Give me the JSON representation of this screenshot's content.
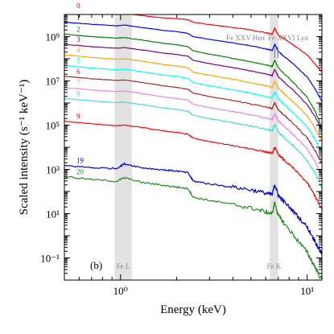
{
  "chart_data": {
    "type": "line",
    "title": "",
    "xlabel": "Energy (keV)",
    "ylabel": "Scaled intensity (s⁻¹ keV⁻¹)",
    "x_scale": "log",
    "y_scale": "log",
    "xlim": [
      0.5,
      12
    ],
    "ylim": [
      0.01,
      10000000000
    ],
    "x_ticks": [
      {
        "value": 1,
        "label": "10⁰"
      },
      {
        "value": 10,
        "label": "10¹"
      }
    ],
    "y_ticks": [
      {
        "value": 0.1,
        "label": "10⁻¹"
      },
      {
        "value": 10,
        "label": "10¹"
      },
      {
        "value": 1000,
        "label": "10³"
      },
      {
        "value": 100000,
        "label": "10⁵"
      },
      {
        "value": 10000000,
        "label": "10⁷"
      },
      {
        "value": 1000000000,
        "label": "10⁹"
      }
    ],
    "panel_label": "(b)",
    "shaded_bands": [
      {
        "label": "Fe L",
        "x_min": 0.93,
        "x_max": 1.15
      },
      {
        "label": "Fe K",
        "x_min": 6.3,
        "x_max": 7.0
      }
    ],
    "line_markers": [
      {
        "label": "Fe XXV Heα",
        "x": 6.7
      },
      {
        "label": "Fe XXVI Lyα",
        "x": 6.97
      }
    ],
    "energy_points": [
      0.5,
      0.7,
      0.95,
      1.05,
      1.3,
      1.7,
      2.0,
      2.3,
      2.45,
      3.0,
      4.0,
      5.0,
      6.0,
      6.5,
      6.7,
      7.0,
      7.5,
      8.5,
      10.0,
      11.0,
      12.0
    ],
    "series": [
      {
        "name": "0",
        "color": "#ff0000",
        "values": [
          15000000000.0,
          12000000000.0,
          10500000000.0,
          11000000000.0,
          9000000000.0,
          7000000000.0,
          6500000000.0,
          5800000000.0,
          4500000000.0,
          3500000000.0,
          2600000000.0,
          2000000000.0,
          1500000000.0,
          1300000000.0,
          2400000000.0,
          1200000000.0,
          800000000.0,
          400000000.0,
          150000000.0,
          60000000.0,
          25000000.0
        ]
      },
      {
        "name": "1",
        "color": "#0000ff",
        "values": [
          4500000000.0,
          3600000000.0,
          3100000000.0,
          3300000000.0,
          2600000000.0,
          1900000000.0,
          1700000000.0,
          1400000000.0,
          1000000000.0,
          750000000.0,
          520000000.0,
          380000000.0,
          280000000.0,
          240000000.0,
          450000000.0,
          220000000.0,
          130000000.0,
          55000000.0,
          15000000.0,
          4500000.0,
          1200000.0
        ]
      },
      {
        "name": "2",
        "color": "#008000",
        "values": [
          1300000000.0,
          1000000000.0,
          850000000.0,
          900000000.0,
          700000000.0,
          500000000.0,
          430000000.0,
          350000000.0,
          230000000.0,
          160000000.0,
          105000000.0,
          73000000.0,
          53000000.0,
          45000000.0,
          85000000.0,
          40000000.0,
          22000000.0,
          8000000.0,
          1800000.0,
          450000.0,
          80000.0
        ]
      },
      {
        "name": "3",
        "color": "#800080",
        "values": [
          450000000.0,
          350000000.0,
          300000000.0,
          320000000.0,
          250000000.0,
          180000000.0,
          155000000.0,
          130000000.0,
          85000000.0,
          60000000.0,
          40000000.0,
          28000000.0,
          20500000.0,
          17500000.0,
          33000000.0,
          16000000.0,
          9000000.0,
          3500000.0,
          850000.0,
          250000.0,
          60000.0
        ]
      },
      {
        "name": "4",
        "color": "#ffa500",
        "values": [
          150000000.0,
          115000000.0,
          95000000.0,
          100000000.0,
          78000000.0,
          55000000.0,
          47000000.0,
          39000000.0,
          25000000.0,
          18000000.0,
          12000000.0,
          8300000.0,
          6000000.0,
          5100000.0,
          9700000.0,
          4700000.0,
          2700000.0,
          1050000.0,
          260000.0,
          75000.0,
          19000.0
        ]
      },
      {
        "name": "5",
        "color": "#00ffff",
        "values": [
          50000000.0,
          38000000.0,
          32000000.0,
          34000000.0,
          26000000.0,
          18500000.0,
          16000000.0,
          13000000.0,
          8500000.0,
          6000000.0,
          4000000.0,
          2800000.0,
          2000000.0,
          1700000.0,
          3200000.0,
          1550000.0,
          880000.0,
          340000.0,
          85000.0,
          24000.0,
          6000.0
        ]
      },
      {
        "name": "6",
        "color": "#a52a2a",
        "values": [
          16000000.0,
          12500000.0,
          10500000.0,
          11000000.0,
          8500000.0,
          6000000.0,
          5100000.0,
          4200000.0,
          2800000.0,
          1950000.0,
          1300000.0,
          910000.0,
          660000.0,
          560000.0,
          1050000.0,
          500000.0,
          290000.0,
          110000.0,
          27000.0,
          7500.0,
          1800.0
        ]
      },
      {
        "name": "7",
        "color": "#ee82ee",
        "values": [
          5000000.0,
          3900000.0,
          3300000.0,
          3500000.0,
          2700000.0,
          1900000.0,
          1600000.0,
          1350000.0,
          880000.0,
          620000.0,
          410000.0,
          290000.0,
          210000.0,
          180000.0,
          330000.0,
          160000.0,
          90000.0,
          35000.0,
          8500.0,
          2300.0,
          500.0
        ]
      },
      {
        "name": "8",
        "color": "#40e0d0",
        "values": [
          1600000.0,
          1250000.0,
          1050000.0,
          1100000.0,
          850000.0,
          600000.0,
          510000.0,
          420000.0,
          280000.0,
          195000.0,
          130000.0,
          91000.0,
          66000.0,
          56000.0,
          105000.0,
          50000.0,
          28000.0,
          11000.0,
          2600.0,
          700.0,
          150.0
        ]
      },
      {
        "name": "9",
        "color": "#ff0000",
        "values": [
          150000.0,
          115000.0,
          95000.0,
          100000.0,
          78000.0,
          55000.0,
          47000.0,
          39000.0,
          26000.0,
          18000.0,
          12000.0,
          8500.0,
          6200.0,
          5300.0,
          10000.0,
          4800.0,
          2700.0,
          1050.0,
          250.0,
          65.0,
          15.0
        ]
      },
      {
        "name": "19",
        "color": "#0000cd",
        "values": [
          1500.0,
          1200.0,
          1100.0,
          1800.0,
          1200.0,
          950.0,
          850.0,
          700.0,
          300.0,
          220.0,
          160.0,
          120.0,
          85.0,
          72.0,
          220.0,
          68.0,
          35.0,
          12.0,
          2.5,
          0.6,
          0.15
        ]
      },
      {
        "name": "20",
        "color": "#228b22",
        "values": [
          480.0,
          350.0,
          290.0,
          420.0,
          260.0,
          190.0,
          160.0,
          135.0,
          55.0,
          40.0,
          26.0,
          18.0,
          12.0,
          10.0,
          32.0,
          8.5,
          3.8,
          1.0,
          0.18,
          0.04,
          0.01
        ]
      }
    ]
  }
}
